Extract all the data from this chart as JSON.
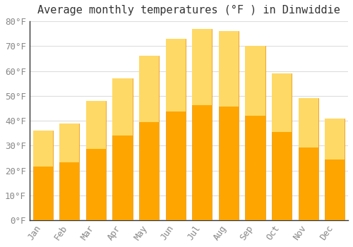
{
  "title": "Average monthly temperatures (°F ) in Dinwiddie",
  "months": [
    "Jan",
    "Feb",
    "Mar",
    "Apr",
    "May",
    "Jun",
    "Jul",
    "Aug",
    "Sep",
    "Oct",
    "Nov",
    "Dec"
  ],
  "values": [
    36,
    39,
    48,
    57,
    66,
    73,
    77,
    76,
    70,
    59,
    49,
    41
  ],
  "bar_color_top": "#FFD966",
  "bar_color_bottom": "#FFA500",
  "bar_edge_color": "#E8940A",
  "background_color": "#FFFFFF",
  "grid_color": "#DDDDDD",
  "ylim": [
    0,
    80
  ],
  "yticks": [
    0,
    10,
    20,
    30,
    40,
    50,
    60,
    70,
    80
  ],
  "title_fontsize": 11,
  "tick_fontsize": 9,
  "font_family": "monospace",
  "tick_color": "#888888",
  "title_color": "#333333"
}
